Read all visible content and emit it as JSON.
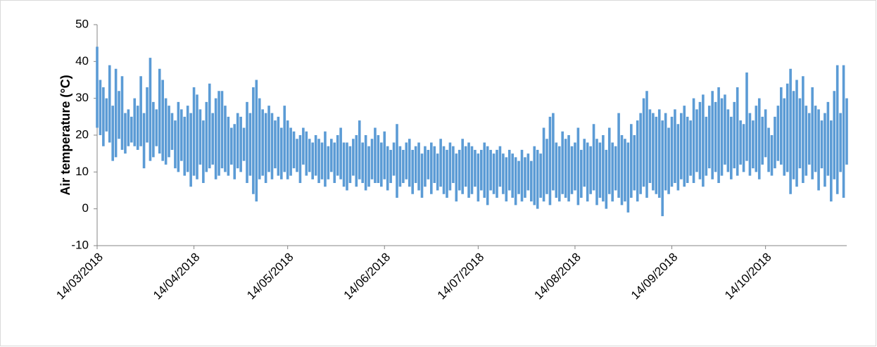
{
  "chart_data": {
    "type": "range-line",
    "y_label": "Air temperature (°C)",
    "x": [
      "14/03/2018",
      "15/03/2018",
      "16/03/2018",
      "17/03/2018",
      "18/03/2018",
      "19/03/2018",
      "20/03/2018",
      "21/03/2018",
      "22/03/2018",
      "23/03/2018",
      "24/03/2018",
      "25/03/2018",
      "26/03/2018",
      "27/03/2018",
      "28/03/2018",
      "29/03/2018",
      "30/03/2018",
      "31/03/2018",
      "01/04/2018",
      "02/04/2018",
      "03/04/2018",
      "04/04/2018",
      "05/04/2018",
      "06/04/2018",
      "07/04/2018",
      "08/04/2018",
      "09/04/2018",
      "10/04/2018",
      "11/04/2018",
      "12/04/2018",
      "13/04/2018",
      "14/04/2018",
      "15/04/2018",
      "16/04/2018",
      "17/04/2018",
      "18/04/2018",
      "19/04/2018",
      "20/04/2018",
      "21/04/2018",
      "22/04/2018",
      "23/04/2018",
      "24/04/2018",
      "25/04/2018",
      "26/04/2018",
      "27/04/2018",
      "28/04/2018",
      "29/04/2018",
      "30/04/2018",
      "01/05/2018",
      "02/05/2018",
      "03/05/2018",
      "04/05/2018",
      "05/05/2018",
      "06/05/2018",
      "07/05/2018",
      "08/05/2018",
      "09/05/2018",
      "10/05/2018",
      "11/05/2018",
      "12/05/2018",
      "13/05/2018",
      "14/05/2018",
      "15/05/2018",
      "16/05/2018",
      "17/05/2018",
      "18/05/2018",
      "19/05/2018",
      "20/05/2018",
      "21/05/2018",
      "22/05/2018",
      "23/05/2018",
      "24/05/2018",
      "25/05/2018",
      "26/05/2018",
      "27/05/2018",
      "28/05/2018",
      "29/05/2018",
      "30/05/2018",
      "31/05/2018",
      "01/06/2018",
      "02/06/2018",
      "03/06/2018",
      "04/06/2018",
      "05/06/2018",
      "06/06/2018",
      "07/06/2018",
      "08/06/2018",
      "09/06/2018",
      "10/06/2018",
      "11/06/2018",
      "12/06/2018",
      "13/06/2018",
      "14/06/2018",
      "15/06/2018",
      "16/06/2018",
      "17/06/2018",
      "18/06/2018",
      "19/06/2018",
      "20/06/2018",
      "21/06/2018",
      "22/06/2018",
      "23/06/2018",
      "24/06/2018",
      "25/06/2018",
      "26/06/2018",
      "27/06/2018",
      "28/06/2018",
      "29/06/2018",
      "30/06/2018",
      "01/07/2018",
      "02/07/2018",
      "03/07/2018",
      "04/07/2018",
      "05/07/2018",
      "06/07/2018",
      "07/07/2018",
      "08/07/2018",
      "09/07/2018",
      "10/07/2018",
      "11/07/2018",
      "12/07/2018",
      "13/07/2018",
      "14/07/2018",
      "15/07/2018",
      "16/07/2018",
      "17/07/2018",
      "18/07/2018",
      "19/07/2018",
      "20/07/2018",
      "21/07/2018",
      "22/07/2018",
      "23/07/2018",
      "24/07/2018",
      "25/07/2018",
      "26/07/2018",
      "27/07/2018",
      "28/07/2018",
      "29/07/2018",
      "30/07/2018",
      "31/07/2018",
      "01/08/2018",
      "02/08/2018",
      "03/08/2018",
      "04/08/2018",
      "05/08/2018",
      "06/08/2018",
      "07/08/2018",
      "08/08/2018",
      "09/08/2018",
      "10/08/2018",
      "11/08/2018",
      "12/08/2018",
      "13/08/2018",
      "14/08/2018",
      "15/08/2018",
      "16/08/2018",
      "17/08/2018",
      "18/08/2018",
      "19/08/2018",
      "20/08/2018",
      "21/08/2018",
      "22/08/2018",
      "23/08/2018",
      "24/08/2018",
      "25/08/2018",
      "26/08/2018",
      "27/08/2018",
      "28/08/2018",
      "29/08/2018",
      "30/08/2018",
      "31/08/2018",
      "01/09/2018",
      "02/09/2018",
      "03/09/2018",
      "04/09/2018",
      "05/09/2018",
      "06/09/2018",
      "07/09/2018",
      "08/09/2018",
      "09/09/2018",
      "10/09/2018",
      "11/09/2018",
      "12/09/2018",
      "13/09/2018",
      "14/09/2018",
      "15/09/2018",
      "16/09/2018",
      "17/09/2018",
      "18/09/2018",
      "19/09/2018",
      "20/09/2018",
      "21/09/2018",
      "22/09/2018",
      "23/09/2018",
      "24/09/2018",
      "25/09/2018",
      "26/09/2018",
      "27/09/2018",
      "28/09/2018",
      "29/09/2018",
      "30/09/2018",
      "01/10/2018",
      "02/10/2018",
      "03/10/2018",
      "04/10/2018",
      "05/10/2018",
      "06/10/2018",
      "07/10/2018",
      "08/10/2018",
      "09/10/2018",
      "10/10/2018",
      "11/10/2018",
      "12/10/2018",
      "13/10/2018",
      "14/10/2018",
      "15/10/2018",
      "16/10/2018",
      "17/10/2018",
      "18/10/2018",
      "19/10/2018",
      "20/10/2018",
      "21/10/2018",
      "22/10/2018",
      "23/10/2018",
      "24/10/2018",
      "25/10/2018",
      "26/10/2018",
      "27/10/2018",
      "28/10/2018",
      "29/10/2018",
      "30/10/2018",
      "31/10/2018",
      "01/11/2018",
      "02/11/2018",
      "03/11/2018",
      "04/11/2018",
      "05/11/2018",
      "06/11/2018",
      "07/11/2018",
      "08/11/2018",
      "09/11/2018"
    ],
    "series": [
      {
        "color": "#5b9bd5",
        "values": [
          44,
          35,
          33,
          30,
          39,
          28,
          38,
          32,
          36,
          26,
          27,
          25,
          30,
          28,
          36,
          26,
          33,
          41,
          29,
          27,
          38,
          35,
          30,
          28,
          26,
          24,
          29,
          27,
          25,
          28,
          26,
          33,
          31,
          27,
          24,
          29,
          34,
          26,
          30,
          32,
          32,
          28,
          25,
          22,
          23,
          26,
          25,
          22,
          29,
          26,
          33,
          35,
          30,
          27,
          26,
          28,
          26,
          24,
          25,
          22,
          28,
          24,
          22,
          21,
          19,
          20,
          22,
          21,
          19,
          18,
          20,
          19,
          18,
          21,
          17,
          19,
          18,
          20,
          22,
          18,
          18,
          17,
          19,
          20,
          24,
          18,
          20,
          17,
          19,
          22,
          20,
          18,
          21,
          17,
          16,
          18,
          23,
          17,
          16,
          18,
          19,
          16,
          17,
          18,
          15,
          17,
          16,
          18,
          17,
          15,
          19,
          17,
          16,
          18,
          17,
          15,
          16,
          19,
          17,
          18,
          17,
          16,
          15,
          16,
          18,
          17,
          16,
          15,
          16,
          17,
          15,
          14,
          16,
          15,
          14,
          13,
          16,
          14,
          15,
          13,
          17,
          16,
          15,
          22,
          19,
          25,
          26,
          18,
          17,
          21,
          19,
          20,
          17,
          18,
          22,
          16,
          19,
          18,
          17,
          23,
          19,
          18,
          20,
          16,
          22,
          18,
          17,
          26,
          20,
          19,
          18,
          23,
          20,
          24,
          26,
          30,
          32,
          27,
          26,
          25,
          27,
          24,
          26,
          22,
          25,
          27,
          23,
          26,
          28,
          25,
          24,
          30,
          27,
          29,
          31,
          25,
          28,
          32,
          29,
          33,
          30,
          31,
          27,
          25,
          29,
          33,
          24,
          23,
          37,
          26,
          24,
          28,
          30,
          25,
          27,
          22,
          20,
          25,
          28,
          33,
          30,
          34,
          38,
          32,
          35,
          30,
          36,
          28,
          26,
          33,
          28,
          27,
          24,
          26,
          29,
          24,
          32,
          39,
          26,
          39,
          30
        ]
      },
      {
        "color": "#5b9bd5",
        "values": [
          22,
          20,
          17,
          21,
          18,
          13,
          14,
          19,
          16,
          15,
          17,
          18,
          17,
          16,
          17,
          11,
          18,
          13,
          14,
          17,
          15,
          13,
          12,
          14,
          16,
          11,
          10,
          13,
          9,
          10,
          6,
          9,
          8,
          12,
          7,
          10,
          11,
          12,
          8,
          9,
          11,
          10,
          9,
          12,
          8,
          11,
          10,
          13,
          7,
          9,
          4,
          2,
          8,
          9,
          7,
          10,
          8,
          11,
          9,
          8,
          10,
          8,
          9,
          11,
          10,
          7,
          12,
          9,
          10,
          8,
          9,
          7,
          8,
          6,
          8,
          10,
          7,
          9,
          8,
          6,
          5,
          7,
          9,
          6,
          8,
          7,
          5,
          6,
          8,
          7,
          7,
          6,
          8,
          5,
          7,
          9,
          3,
          6,
          7,
          8,
          6,
          4,
          7,
          5,
          3,
          6,
          8,
          4,
          7,
          5,
          6,
          4,
          3,
          5,
          7,
          2,
          5,
          4,
          6,
          3,
          4,
          6,
          2,
          5,
          3,
          1,
          5,
          4,
          3,
          6,
          4,
          2,
          5,
          3,
          1,
          4,
          2,
          3,
          5,
          2,
          1,
          0,
          3,
          2,
          4,
          1,
          5,
          3,
          2,
          4,
          3,
          2,
          4,
          5,
          1,
          3,
          6,
          2,
          4,
          5,
          1,
          3,
          2,
          0,
          4,
          2,
          5,
          3,
          1,
          2,
          -1,
          3,
          5,
          2,
          4,
          6,
          3,
          7,
          5,
          4,
          3,
          -2,
          5,
          4,
          6,
          7,
          5,
          8,
          6,
          7,
          9,
          7,
          10,
          8,
          6,
          9,
          11,
          8,
          10,
          7,
          9,
          12,
          10,
          8,
          11,
          9,
          12,
          10,
          13,
          9,
          11,
          10,
          8,
          12,
          14,
          10,
          9,
          11,
          13,
          12,
          9,
          10,
          4,
          8,
          6,
          11,
          7,
          9,
          12,
          8,
          10,
          5,
          11,
          6,
          9,
          2,
          8,
          4,
          10,
          3,
          12
        ]
      }
    ],
    "xlim": [
      "14/03/2018",
      "09/11/2018"
    ],
    "xticks": [
      "14/03/2018",
      "14/04/2018",
      "14/05/2018",
      "14/06/2018",
      "14/07/2018",
      "14/08/2018",
      "14/09/2018",
      "14/10/2018"
    ],
    "ylim": [
      -10,
      50
    ],
    "yticks": [
      -10,
      0,
      10,
      20,
      30,
      40,
      50
    ]
  }
}
